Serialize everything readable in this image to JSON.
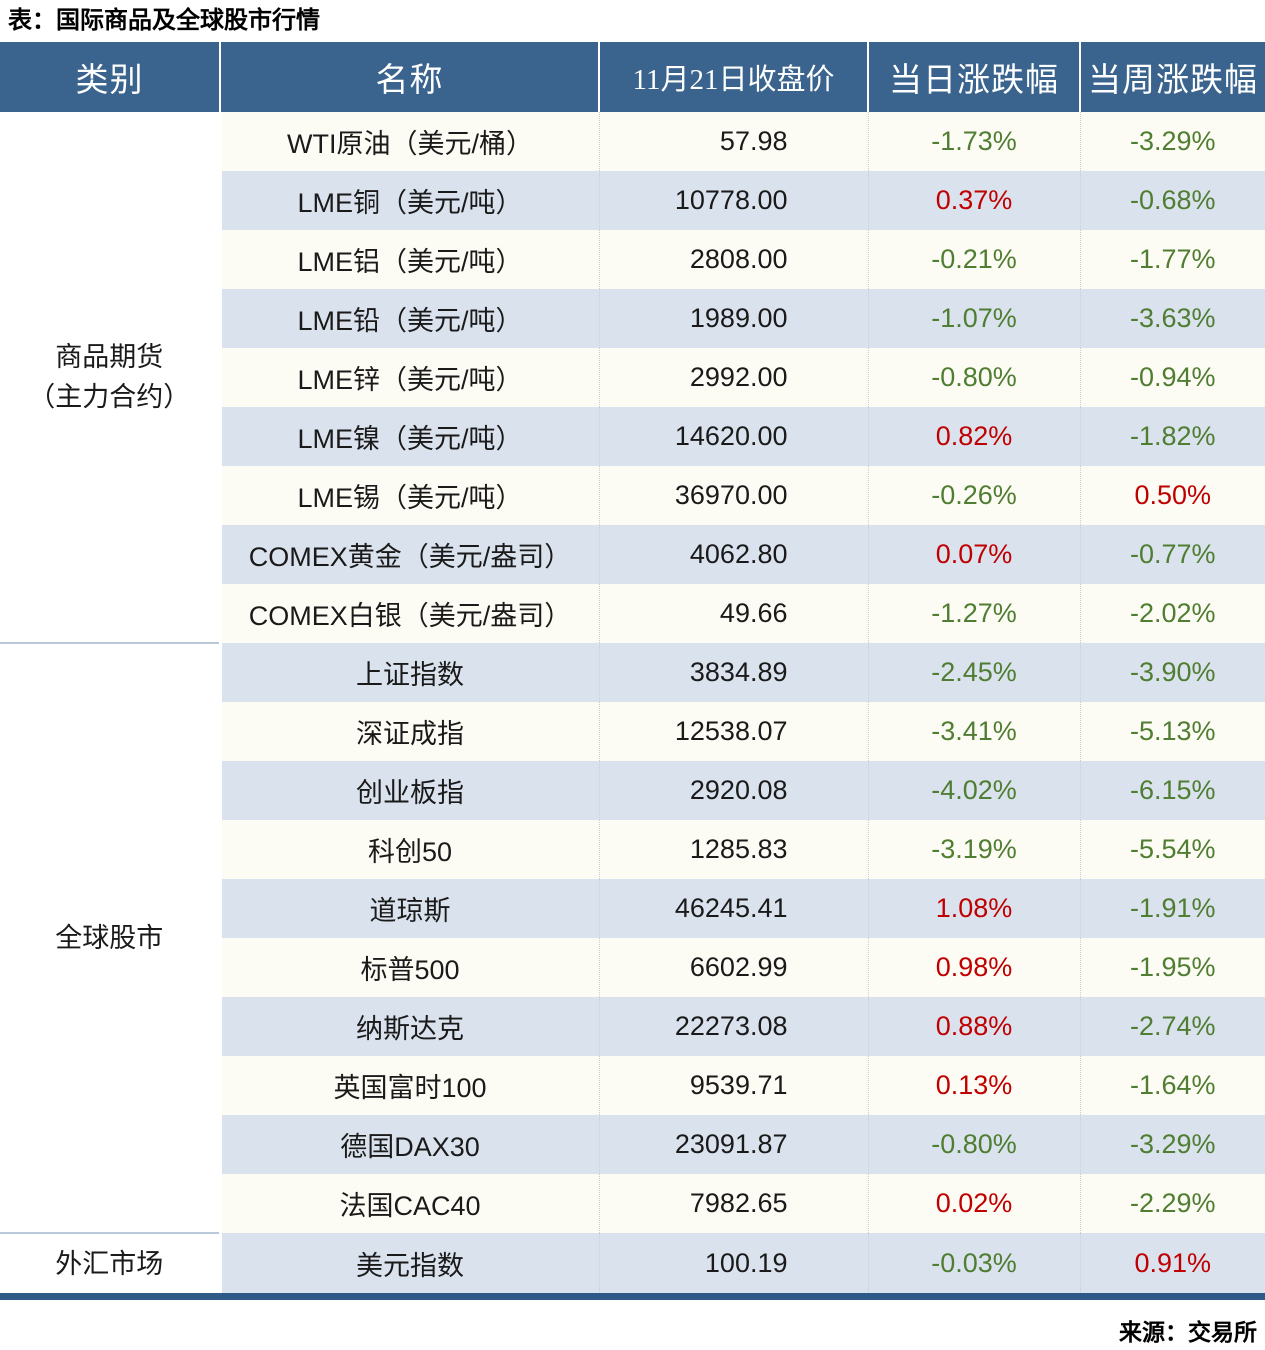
{
  "title": "表：国际商品及全球股市行情",
  "source": "来源：交易所",
  "colors": {
    "header_bg": "#3a648e",
    "stripe_bg": "#dae2ee",
    "up": "#c00000",
    "down": "#4f7d31",
    "bottom_border": "#2e5a87"
  },
  "chart_data": {
    "type": "table",
    "title": "表：国际商品及全球股市行情",
    "source": "来源：交易所",
    "columns": [
      "类别",
      "名称",
      "11月21日收盘价",
      "当日涨跌幅",
      "当周涨跌幅"
    ],
    "groups": [
      {
        "label_lines": [
          "商品期货",
          "（主力合约）"
        ],
        "rows": [
          {
            "name": "WTI原油（美元/桶）",
            "close": "57.98",
            "day": "-1.73%",
            "week": "-3.29%"
          },
          {
            "name": "LME铜（美元/吨）",
            "close": "10778.00",
            "day": "0.37%",
            "week": "-0.68%"
          },
          {
            "name": "LME铝（美元/吨）",
            "close": "2808.00",
            "day": "-0.21%",
            "week": "-1.77%"
          },
          {
            "name": "LME铅（美元/吨）",
            "close": "1989.00",
            "day": "-1.07%",
            "week": "-3.63%"
          },
          {
            "name": "LME锌（美元/吨）",
            "close": "2992.00",
            "day": "-0.80%",
            "week": "-0.94%"
          },
          {
            "name": "LME镍（美元/吨）",
            "close": "14620.00",
            "day": "0.82%",
            "week": "-1.82%"
          },
          {
            "name": "LME锡（美元/吨）",
            "close": "36970.00",
            "day": "-0.26%",
            "week": "0.50%"
          },
          {
            "name": "COMEX黄金（美元/盎司）",
            "close": "4062.80",
            "day": "0.07%",
            "week": "-0.77%"
          },
          {
            "name": "COMEX白银（美元/盎司）",
            "close": "49.66",
            "day": "-1.27%",
            "week": "-2.02%"
          }
        ]
      },
      {
        "label_lines": [
          "全球股市"
        ],
        "rows": [
          {
            "name": "上证指数",
            "close": "3834.89",
            "day": "-2.45%",
            "week": "-3.90%"
          },
          {
            "name": "深证成指",
            "close": "12538.07",
            "day": "-3.41%",
            "week": "-5.13%"
          },
          {
            "name": "创业板指",
            "close": "2920.08",
            "day": "-4.02%",
            "week": "-6.15%"
          },
          {
            "name": "科创50",
            "close": "1285.83",
            "day": "-3.19%",
            "week": "-5.54%"
          },
          {
            "name": "道琼斯",
            "close": "46245.41",
            "day": "1.08%",
            "week": "-1.91%"
          },
          {
            "name": "标普500",
            "close": "6602.99",
            "day": "0.98%",
            "week": "-1.95%"
          },
          {
            "name": "纳斯达克",
            "close": "22273.08",
            "day": "0.88%",
            "week": "-2.74%"
          },
          {
            "name": "英国富时100",
            "close": "9539.71",
            "day": "0.13%",
            "week": "-1.64%"
          },
          {
            "name": "德国DAX30",
            "close": "23091.87",
            "day": "-0.80%",
            "week": "-3.29%"
          },
          {
            "name": "法国CAC40",
            "close": "7982.65",
            "day": "0.02%",
            "week": "-2.29%"
          }
        ]
      },
      {
        "label_lines": [
          "外汇市场"
        ],
        "rows": [
          {
            "name": "美元指数",
            "close": "100.19",
            "day": "-0.03%",
            "week": "0.91%"
          }
        ]
      }
    ]
  }
}
